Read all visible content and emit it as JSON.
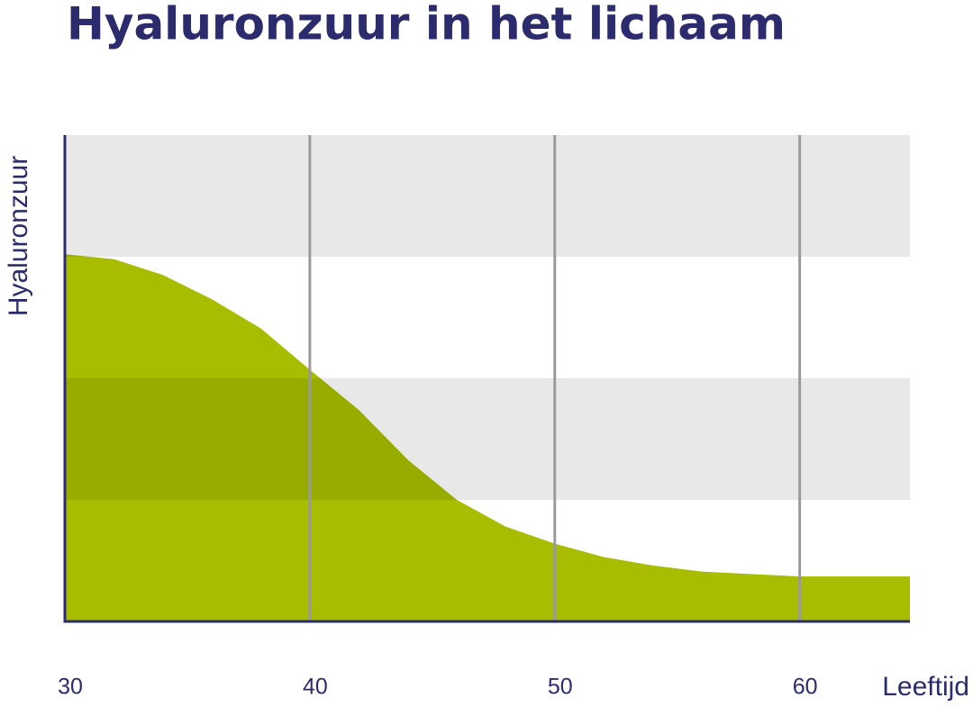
{
  "chart_data": {
    "type": "area",
    "title": "Hyaluronzuur in het lichaam",
    "y_label": "Hyaluronzuur",
    "x_label": "Leeftijd",
    "x": [
      30,
      32,
      34,
      36,
      38,
      40,
      42,
      44,
      46,
      48,
      50,
      52,
      54,
      56,
      58,
      60,
      62,
      64.5
    ],
    "series": [
      {
        "name": "Hyaluronzuur",
        "color": "#a8bd00",
        "values": [
          3.02,
          2.98,
          2.85,
          2.65,
          2.41,
          2.07,
          1.74,
          1.33,
          1.0,
          0.78,
          0.64,
          0.53,
          0.46,
          0.41,
          0.39,
          0.37,
          0.37,
          0.37
        ]
      }
    ],
    "xlim": [
      30,
      64.5
    ],
    "ylim": [
      0,
      4
    ],
    "xticks": [
      30,
      40,
      50,
      60
    ],
    "grid": true
  }
}
